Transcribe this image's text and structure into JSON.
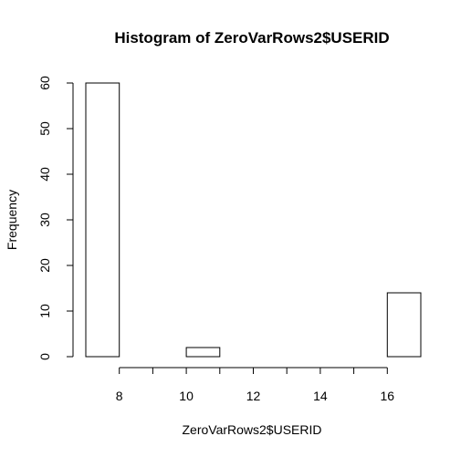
{
  "chart_data": {
    "type": "bar",
    "title": "Histogram of ZeroVarRows2$USERID",
    "xlabel": "ZeroVarRows2$USERID",
    "ylabel": "Frequency",
    "bins": [
      {
        "start": 7,
        "end": 8,
        "count": 60
      },
      {
        "start": 8,
        "end": 9,
        "count": 0
      },
      {
        "start": 9,
        "end": 10,
        "count": 0
      },
      {
        "start": 10,
        "end": 11,
        "count": 2
      },
      {
        "start": 11,
        "end": 12,
        "count": 0
      },
      {
        "start": 12,
        "end": 13,
        "count": 0
      },
      {
        "start": 13,
        "end": 14,
        "count": 0
      },
      {
        "start": 14,
        "end": 15,
        "count": 0
      },
      {
        "start": 15,
        "end": 16,
        "count": 0
      },
      {
        "start": 16,
        "end": 17,
        "count": 14
      }
    ],
    "xticks": [
      8,
      10,
      12,
      14,
      16
    ],
    "yticks": [
      0,
      10,
      20,
      30,
      40,
      50,
      60
    ],
    "xlim": [
      7,
      17
    ],
    "ylim": [
      0,
      60
    ],
    "grid": false,
    "colors": {
      "bar_fill": "#ffffff",
      "bar_stroke": "#000000"
    }
  }
}
